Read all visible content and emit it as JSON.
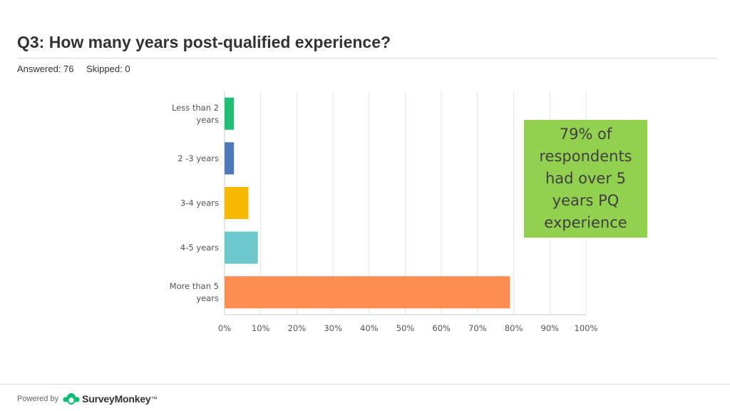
{
  "header": {
    "question": "Q3: How many years post-qualified experience?",
    "answered": "Answered: 76",
    "skipped": "Skipped: 0"
  },
  "callout": {
    "text": "79% of respondents had over 5 years PQ experience",
    "color": "#92d050"
  },
  "footer": {
    "powered_by": "Powered by",
    "brand": "SurveyMonkey",
    "brand_mark": "™",
    "logo_icon": "surveymonkey-logo-icon",
    "logo_color": "#00bf6f"
  },
  "chart_data": {
    "type": "bar",
    "orientation": "horizontal",
    "categories": [
      [
        "Less than 2",
        "years"
      ],
      [
        "2 -3 years"
      ],
      [
        "3-4 years"
      ],
      [
        "4-5 years"
      ],
      [
        "More than 5",
        "years"
      ]
    ],
    "values": [
      2.6,
      2.6,
      6.6,
      9.2,
      79.0
    ],
    "colors": [
      "#21bf73",
      "#4e79b7",
      "#f6b900",
      "#6dc8cc",
      "#ff8c50"
    ],
    "xlim": [
      0,
      100
    ],
    "xticks": [
      "0%",
      "10%",
      "20%",
      "30%",
      "40%",
      "50%",
      "60%",
      "70%",
      "80%",
      "90%",
      "100%"
    ],
    "grid": true
  }
}
